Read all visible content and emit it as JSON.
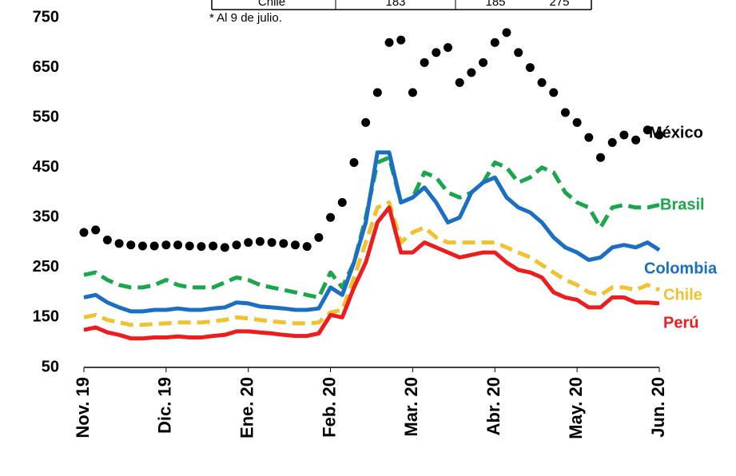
{
  "chart_data": {
    "type": "line",
    "note": "* Al 9 de julio.",
    "table_row": [
      "Chile",
      "183",
      "185",
      "275"
    ],
    "categories": [
      "Nov. 19",
      null,
      null,
      null,
      null,
      null,
      null,
      "Dic. 19",
      null,
      null,
      null,
      null,
      null,
      null,
      "Ene. 20",
      null,
      null,
      null,
      null,
      null,
      null,
      "Feb. 20",
      null,
      null,
      null,
      null,
      null,
      null,
      "Mar. 20",
      null,
      null,
      null,
      null,
      null,
      null,
      "Abr. 20",
      null,
      null,
      null,
      null,
      null,
      null,
      "May. 20",
      null,
      null,
      null,
      null,
      null,
      null,
      "Jun. 20"
    ],
    "ylim": [
      50,
      750
    ],
    "yticks": [
      750,
      650,
      550,
      450,
      350,
      250,
      150,
      50
    ],
    "series": [
      {
        "name": "México",
        "color": "#000000",
        "style": "dotted",
        "values": [
          320,
          325,
          305,
          298,
          295,
          293,
          293,
          295,
          295,
          293,
          292,
          293,
          290,
          295,
          300,
          302,
          300,
          298,
          295,
          292,
          310,
          350,
          380,
          460,
          540,
          600,
          700,
          705,
          600,
          660,
          680,
          690,
          620,
          640,
          660,
          700,
          720,
          680,
          650,
          620,
          600,
          560,
          540,
          510,
          470,
          500,
          515,
          505,
          525,
          515
        ]
      },
      {
        "name": "Brasil",
        "color": "#1aa64a",
        "style": "dashed",
        "values": [
          235,
          240,
          225,
          215,
          210,
          210,
          215,
          225,
          215,
          210,
          210,
          210,
          220,
          230,
          225,
          215,
          210,
          205,
          200,
          195,
          190,
          240,
          210,
          260,
          350,
          460,
          470,
          380,
          390,
          440,
          430,
          400,
          390,
          400,
          420,
          460,
          450,
          420,
          430,
          450,
          440,
          400,
          380,
          370,
          330,
          370,
          375,
          370,
          370,
          375
        ]
      },
      {
        "name": "Colombia",
        "color": "#1a6fc4",
        "style": "solid",
        "values": [
          190,
          195,
          180,
          170,
          162,
          162,
          165,
          165,
          168,
          165,
          165,
          168,
          170,
          180,
          178,
          172,
          170,
          168,
          165,
          165,
          168,
          210,
          195,
          260,
          340,
          480,
          480,
          380,
          390,
          410,
          380,
          340,
          350,
          400,
          420,
          430,
          390,
          370,
          360,
          340,
          310,
          290,
          280,
          265,
          270,
          290,
          295,
          290,
          300,
          285
        ]
      },
      {
        "name": "Chile",
        "color": "#f2c12e",
        "style": "dashed",
        "values": [
          150,
          155,
          145,
          140,
          135,
          135,
          137,
          138,
          140,
          140,
          140,
          142,
          145,
          150,
          148,
          145,
          142,
          140,
          138,
          138,
          140,
          160,
          165,
          230,
          300,
          370,
          380,
          300,
          320,
          330,
          310,
          300,
          300,
          300,
          300,
          300,
          290,
          280,
          270,
          255,
          240,
          225,
          215,
          200,
          195,
          210,
          210,
          205,
          215,
          205
        ]
      },
      {
        "name": "Perú",
        "color": "#ee1c1c",
        "style": "solid",
        "values": [
          125,
          130,
          120,
          115,
          108,
          108,
          110,
          110,
          112,
          110,
          110,
          113,
          115,
          122,
          122,
          120,
          118,
          115,
          113,
          113,
          118,
          155,
          150,
          210,
          260,
          340,
          370,
          280,
          280,
          300,
          290,
          280,
          270,
          275,
          280,
          280,
          260,
          245,
          240,
          230,
          200,
          190,
          185,
          170,
          170,
          190,
          190,
          180,
          180,
          178
        ]
      }
    ]
  }
}
